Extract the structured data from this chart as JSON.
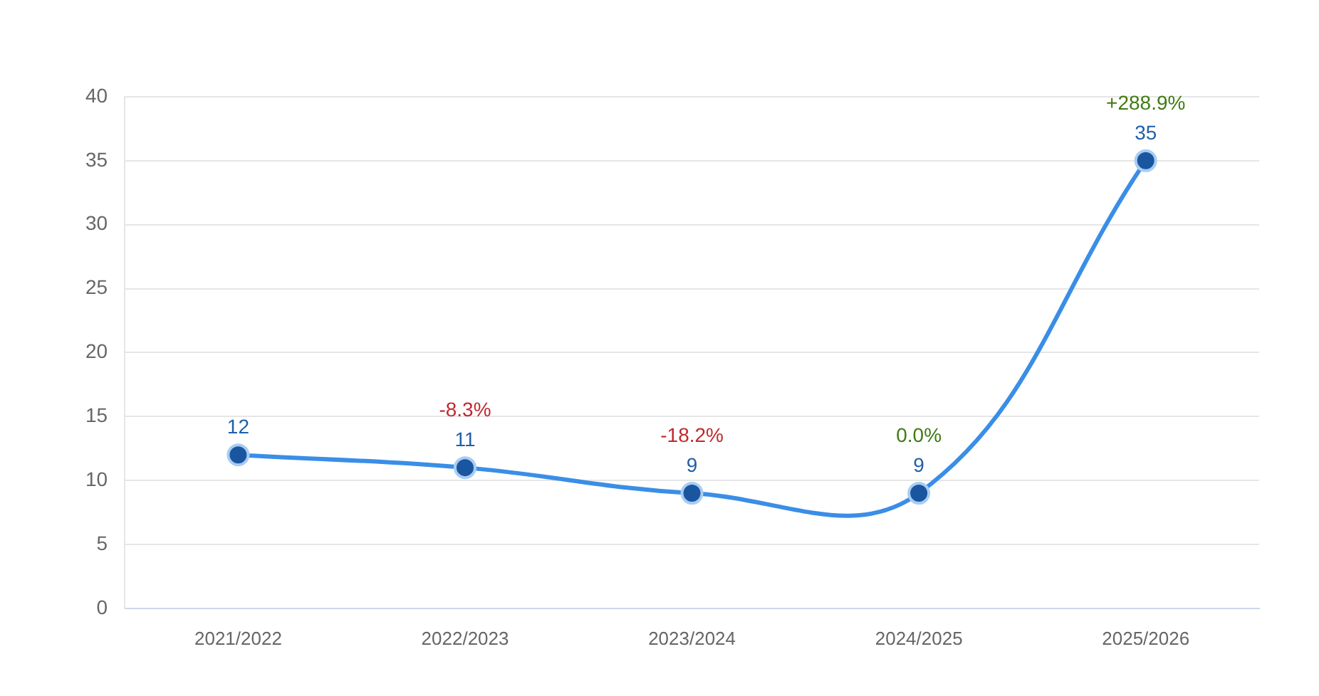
{
  "chart_data": {
    "type": "line",
    "categories": [
      "2021/2022",
      "2022/2023",
      "2023/2024",
      "2024/2025",
      "2025/2026"
    ],
    "series": [
      {
        "color": "#3a8ee6",
        "values": [
          12,
          11,
          9,
          9,
          35
        ]
      }
    ],
    "ylim": [
      0,
      40
    ],
    "yticks": [
      0,
      5,
      10,
      15,
      20,
      25,
      30,
      35,
      40
    ],
    "grid": "y",
    "legend": false,
    "marker": "circle",
    "line_style": "solid",
    "data_labels": true,
    "annotations": [
      {
        "text": "-8.3%",
        "x": "2022/2023",
        "y": 11
      },
      {
        "text": "-18.2%",
        "x": "2023/2024",
        "y": 9
      },
      {
        "text": "0.0%",
        "x": "2024/2025",
        "y": 9
      },
      {
        "text": "+288.9%",
        "x": "2025/2026",
        "y": 35
      }
    ]
  }
}
